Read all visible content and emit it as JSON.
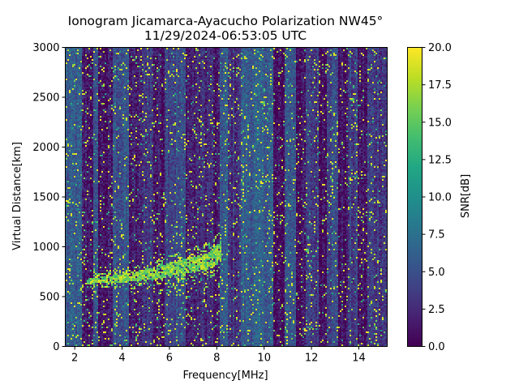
{
  "chart_data": {
    "type": "heatmap",
    "title": "Ionogram Jicamarca-Ayacucho Polarization NW45°",
    "subtitle": "11/29/2024-06:53:05 UTC",
    "xlabel": "Frequency[MHz]",
    "ylabel": "Virtual Distance[km]",
    "xlim": [
      1.6,
      15.2
    ],
    "ylim": [
      0,
      3000
    ],
    "xticks": [
      2,
      4,
      6,
      8,
      10,
      12,
      14
    ],
    "xtick_labels": [
      "2",
      "4",
      "6",
      "8",
      "10",
      "12",
      "14"
    ],
    "yticks": [
      0,
      500,
      1000,
      1500,
      2000,
      2500,
      3000
    ],
    "ytick_labels": [
      "0",
      "500",
      "1000",
      "1500",
      "2000",
      "2500",
      "3000"
    ],
    "colormap": "viridis",
    "colorbar": {
      "label": "SNR[dB]",
      "range": [
        0.0,
        20.0
      ],
      "ticks": [
        0.0,
        2.5,
        5.0,
        7.5,
        10.0,
        12.5,
        15.0,
        17.5,
        20.0
      ],
      "tick_labels": [
        "0.0",
        "2.5",
        "5.0",
        "7.5",
        "10.0",
        "12.5",
        "15.0",
        "17.5",
        "20.0"
      ]
    },
    "grid": false,
    "background_bands_mhz": [
      {
        "from": 1.6,
        "to": 2.3,
        "level_db": 5.5
      },
      {
        "from": 2.3,
        "to": 2.75,
        "level_db": 1.5
      },
      {
        "from": 2.75,
        "to": 3.0,
        "level_db": 4.5
      },
      {
        "from": 3.0,
        "to": 3.6,
        "level_db": 1.2
      },
      {
        "from": 3.6,
        "to": 4.25,
        "level_db": 5.0
      },
      {
        "from": 4.25,
        "to": 4.85,
        "level_db": 1.5
      },
      {
        "from": 4.85,
        "to": 5.3,
        "level_db": 3.5
      },
      {
        "from": 5.3,
        "to": 5.8,
        "level_db": 1.5
      },
      {
        "from": 5.8,
        "to": 6.7,
        "level_db": 4.5
      },
      {
        "from": 6.7,
        "to": 7.2,
        "level_db": 2.0
      },
      {
        "from": 7.2,
        "to": 7.85,
        "level_db": 2.5
      },
      {
        "from": 7.85,
        "to": 8.1,
        "level_db": 1.0
      },
      {
        "from": 8.1,
        "to": 8.5,
        "level_db": 5.5
      },
      {
        "from": 8.5,
        "to": 9.05,
        "level_db": 3.0
      },
      {
        "from": 9.05,
        "to": 10.4,
        "level_db": 5.8
      },
      {
        "from": 10.4,
        "to": 10.85,
        "level_db": 0.6
      },
      {
        "from": 10.85,
        "to": 11.35,
        "level_db": 5.5
      },
      {
        "from": 11.35,
        "to": 11.75,
        "level_db": 1.0
      },
      {
        "from": 11.75,
        "to": 12.3,
        "level_db": 3.5
      },
      {
        "from": 12.3,
        "to": 12.65,
        "level_db": 1.2
      },
      {
        "from": 12.65,
        "to": 13.15,
        "level_db": 4.5
      },
      {
        "from": 13.15,
        "to": 13.55,
        "level_db": 1.0
      },
      {
        "from": 13.55,
        "to": 13.95,
        "level_db": 3.5
      },
      {
        "from": 13.95,
        "to": 14.35,
        "level_db": 1.2
      },
      {
        "from": 14.35,
        "to": 15.2,
        "level_db": 3.5
      }
    ],
    "echo_trace": {
      "description": "F-layer echo trace rising from ~650 km at 2.5 MHz to ~950 km near 8.2 MHz",
      "points": [
        {
          "freq_mhz": 2.5,
          "distance_km": 650
        },
        {
          "freq_mhz": 3.5,
          "distance_km": 670
        },
        {
          "freq_mhz": 4.5,
          "distance_km": 700
        },
        {
          "freq_mhz": 5.5,
          "distance_km": 740
        },
        {
          "freq_mhz": 6.5,
          "distance_km": 790
        },
        {
          "freq_mhz": 7.2,
          "distance_km": 830
        },
        {
          "freq_mhz": 7.8,
          "distance_km": 880
        },
        {
          "freq_mhz": 8.2,
          "distance_km": 950
        }
      ],
      "level_db": 19
    }
  }
}
